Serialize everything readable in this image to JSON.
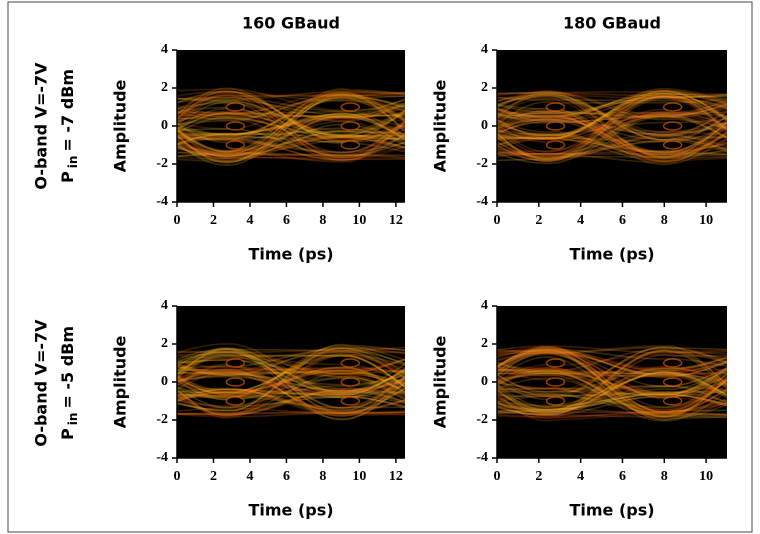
{
  "column_titles": [
    "160 GBaud",
    "180 GBaud"
  ],
  "row_labels": [
    {
      "line1": "O-band V=-7V",
      "p": "P",
      "sub": "in",
      "rest": "= -7 dBm"
    },
    {
      "line1": "O-band V=-7V",
      "p": "P",
      "sub": "in",
      "rest": "= -5 dBm"
    }
  ],
  "chart_data": [
    {
      "type": "eye",
      "xlabel": "Time (ps)",
      "ylabel": "Amplitude",
      "xlim": [
        0,
        12.5
      ],
      "ylim": [
        -4,
        4
      ],
      "xticks": [
        0,
        2,
        4,
        6,
        8,
        10,
        12
      ],
      "yticks": [
        -4,
        -2,
        0,
        2,
        4
      ],
      "eye_x": [
        3.2,
        9.5
      ],
      "eye_y": [
        -1,
        0,
        1
      ]
    },
    {
      "type": "eye",
      "xlabel": "Time (ps)",
      "ylabel": "Amplitude",
      "xlim": [
        0,
        11
      ],
      "ylim": [
        -4,
        4
      ],
      "xticks": [
        0,
        2,
        4,
        6,
        8,
        10
      ],
      "yticks": [
        -4,
        -2,
        0,
        2,
        4
      ],
      "eye_x": [
        2.8,
        8.4
      ],
      "eye_y": [
        -1,
        0,
        1
      ]
    },
    {
      "type": "eye",
      "xlabel": "Time (ps)",
      "ylabel": "Amplitude",
      "xlim": [
        0,
        12.5
      ],
      "ylim": [
        -4,
        4
      ],
      "xticks": [
        0,
        2,
        4,
        6,
        8,
        10,
        12
      ],
      "yticks": [
        -4,
        -2,
        0,
        2,
        4
      ],
      "eye_x": [
        3.2,
        9.5
      ],
      "eye_y": [
        -1,
        0,
        1
      ]
    },
    {
      "type": "eye",
      "xlabel": "Time (ps)",
      "ylabel": "Amplitude",
      "xlim": [
        0,
        11
      ],
      "ylim": [
        -4,
        4
      ],
      "xticks": [
        0,
        2,
        4,
        6,
        8,
        10
      ],
      "yticks": [
        -4,
        -2,
        0,
        2,
        4
      ],
      "eye_x": [
        2.8,
        8.4
      ],
      "eye_y": [
        -1,
        0,
        1
      ]
    }
  ]
}
